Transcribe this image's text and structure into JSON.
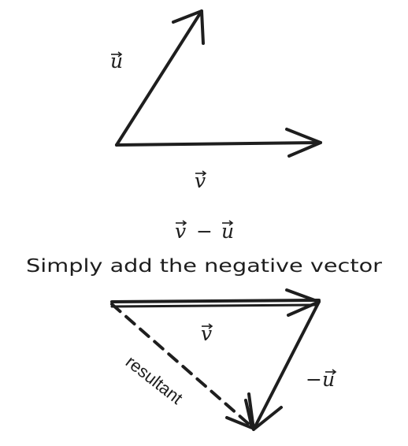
{
  "diagram": {
    "labels": {
      "top_u": "u",
      "top_v": "v",
      "expression_v": "v",
      "expression_minus": "−",
      "expression_u": "u",
      "caption": "Simply add the negative vector",
      "bottom_v": "v",
      "neg_u": "−u",
      "resultant": "resultant"
    },
    "colors": {
      "ink": "#1e1e1e",
      "background": "#ffffff"
    }
  }
}
